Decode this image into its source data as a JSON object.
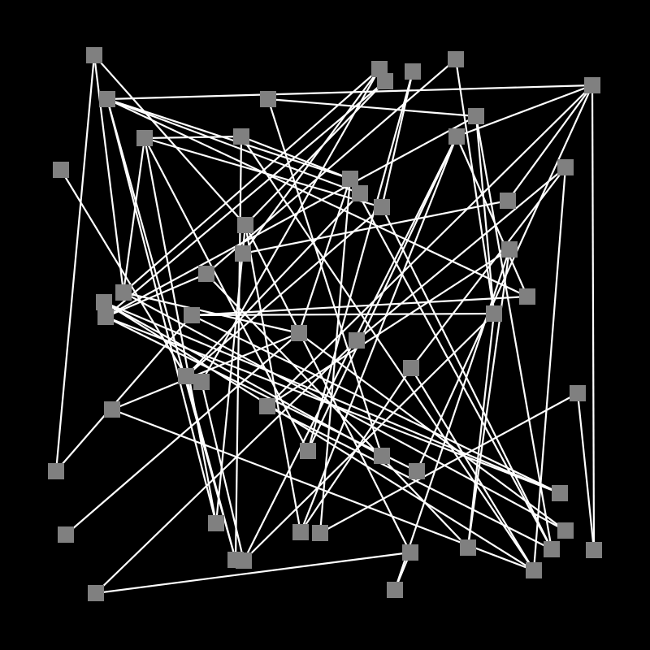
{
  "colors": {
    "background": "#000000",
    "edge": "#ffffff",
    "node": "#808080"
  }
}
